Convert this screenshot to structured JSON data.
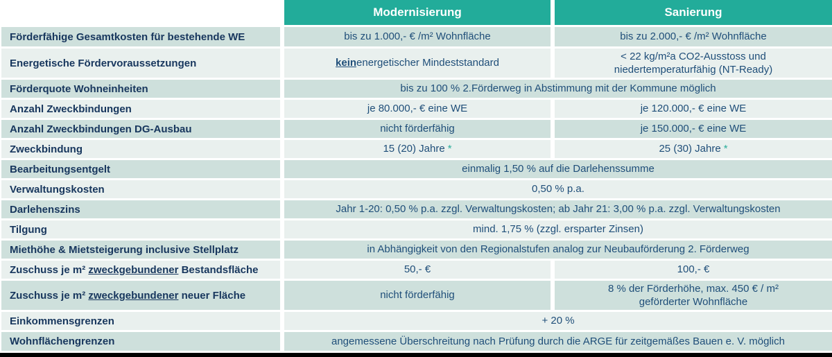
{
  "table": {
    "columns": {
      "modernisierung": "Modernisierung",
      "sanierung": "Sanierung"
    },
    "footnote_marker": "*",
    "colors": {
      "header_bg": "#22AC9A",
      "row_dark": "#CEE0DC",
      "row_light": "#E9F0EE",
      "label_text": "#17365D",
      "value_text": "#1F4E79",
      "footnote_marker": "#2BAE9B",
      "bottom_bar": "#000000"
    },
    "rows": [
      {
        "label": "Förderfähige Gesamtkosten für bestehende WE",
        "mod": "bis zu 1.000,- € /m² Wohnfläche",
        "san": "bis zu 2.000,- € /m² Wohnfläche"
      },
      {
        "label": "Energetische Fördervoraussetzungen",
        "mod_emph": "kein",
        "mod_rest": " energetischer Mindeststandard",
        "san_line1": "< 22 kg/m²a CO2-Ausstoss und",
        "san_line2": "niedertemperaturfähig (NT-Ready)"
      },
      {
        "label": "Förderquote Wohneinheiten",
        "value": "bis zu 100 % 2.Förderweg in Abstimmung mit der Kommune möglich"
      },
      {
        "label": "Anzahl Zweckbindungen",
        "mod": "je 80.000,- € eine WE",
        "san": "je 120.000,- € eine WE"
      },
      {
        "label": "Anzahl Zweckbindungen DG-Ausbau",
        "mod": "nicht förderfähig",
        "san": "je 150.000,- € eine WE"
      },
      {
        "label": "Zweckbindung",
        "mod": "15 (20) Jahre",
        "san": "25 (30) Jahre"
      },
      {
        "label": "Bearbeitungsentgelt",
        "value": "einmalig 1,50 % auf die Darlehenssumme"
      },
      {
        "label": "Verwaltungskosten",
        "value": "0,50 % p.a."
      },
      {
        "label": "Darlehenszins",
        "value": "Jahr 1-20: 0,50 % p.a. zzgl. Verwaltungskosten; ab Jahr 21: 3,00 % p.a. zzgl. Verwaltungskosten"
      },
      {
        "label": "Tilgung",
        "value": "mind. 1,75 % (zzgl. ersparter Zinsen)"
      },
      {
        "label": "Miethöhe & Mietsteigerung inclusive Stellplatz",
        "value": "in Abhängigkeit von den Regionalstufen analog zur Neubauförderung 2. Förderweg"
      },
      {
        "label_pre": "Zuschuss je m² ",
        "label_emph": "zweckgebundener",
        "label_post": " Bestandsfläche",
        "mod": "50,- €",
        "san": "100,- €"
      },
      {
        "label_pre": "Zuschuss je m² ",
        "label_emph": "zweckgebundener",
        "label_post": " neuer Fläche",
        "mod": "nicht förderfähig",
        "san_line1": "8 % der Förderhöhe, max. 450 € / m²",
        "san_line2": "geförderter Wohnfläche"
      },
      {
        "label": "Einkommensgrenzen",
        "value": "+ 20 %"
      },
      {
        "label": "Wohnflächengrenzen",
        "value": "angemessene Überschreitung nach Prüfung durch die ARGE für zeitgemäßes Bauen e. V. möglich"
      }
    ]
  }
}
